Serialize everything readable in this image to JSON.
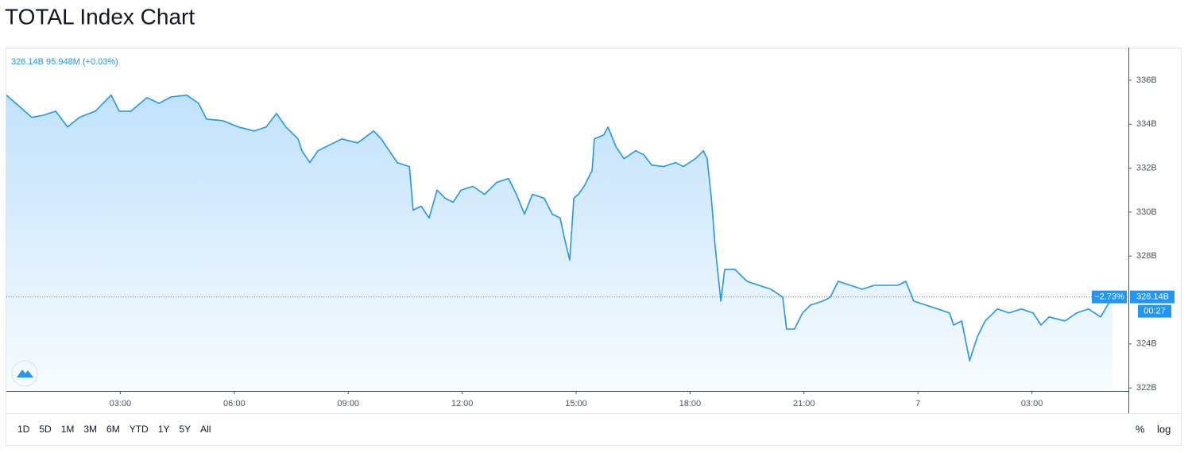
{
  "chart_data": {
    "type": "line",
    "title": "TOTAL Index Chart",
    "legend_text": "326.14B 95.948M (+0.03%)",
    "series": [
      {
        "name": "TOTAL",
        "color": "#2196f3",
        "x": [
          0,
          0.25,
          0.67,
          0.98,
          1.3,
          1.61,
          1.92,
          2.34,
          2.76,
          2.97,
          3.28,
          3.7,
          4.02,
          4.33,
          4.75,
          5.06,
          5.27,
          5.69,
          6.11,
          6.53,
          6.84,
          7.11,
          7.36,
          7.68,
          7.78,
          7.99,
          8.2,
          8.62,
          8.83,
          9.25,
          9.67,
          9.87,
          10.08,
          10.29,
          10.61,
          10.71,
          10.92,
          11.13,
          11.34,
          11.55,
          11.76,
          11.97,
          12.28,
          12.59,
          12.91,
          13.22,
          13.43,
          13.64,
          13.85,
          14.16,
          14.37,
          14.58,
          14.69,
          14.83,
          14.94,
          15.06,
          15.21,
          15.42,
          15.48,
          15.73,
          15.84,
          16.05,
          16.26,
          16.57,
          16.78,
          16.99,
          17.3,
          17.62,
          17.82,
          18.14,
          18.35,
          18.45,
          18.56,
          18.66,
          18.81,
          18.91,
          19.18,
          19.5,
          19.81,
          20.13,
          20.44,
          20.54,
          20.75,
          20.96,
          21.17,
          21.49,
          21.69,
          21.9,
          22.22,
          22.53,
          22.85,
          23.16,
          23.47,
          23.68,
          23.89,
          24.21,
          24.52,
          24.83,
          24.94,
          25.15,
          25.36,
          25.56,
          25.77,
          26.09,
          26.4,
          26.72,
          27.03,
          27.24,
          27.45,
          27.87,
          28.18,
          28.49,
          28.81,
          29.12
        ],
        "values": [
          335.32,
          334.95,
          334.31,
          334.41,
          334.59,
          333.87,
          334.31,
          334.59,
          335.32,
          334.59,
          334.59,
          335.21,
          334.95,
          335.24,
          335.32,
          334.95,
          334.23,
          334.16,
          333.87,
          333.69,
          333.87,
          334.49,
          333.87,
          333.33,
          332.79,
          332.25,
          332.79,
          333.15,
          333.33,
          333.15,
          333.69,
          333.33,
          332.79,
          332.25,
          332.07,
          330.09,
          330.27,
          329.73,
          331.0,
          330.63,
          330.45,
          331.0,
          331.17,
          330.81,
          331.35,
          331.53,
          330.81,
          329.91,
          330.81,
          330.63,
          329.91,
          329.73,
          328.83,
          327.82,
          330.63,
          330.81,
          331.17,
          331.89,
          333.33,
          333.51,
          333.87,
          332.97,
          332.43,
          332.79,
          332.61,
          332.14,
          332.07,
          332.25,
          332.07,
          332.43,
          332.79,
          332.43,
          330.63,
          328.47,
          325.95,
          327.39,
          327.39,
          326.85,
          326.67,
          326.49,
          326.13,
          324.68,
          324.68,
          325.41,
          325.77,
          325.95,
          326.13,
          326.85,
          326.67,
          326.49,
          326.67,
          326.67,
          326.67,
          326.85,
          325.95,
          325.77,
          325.59,
          325.41,
          324.86,
          325.05,
          323.24,
          324.32,
          325.05,
          325.59,
          325.41,
          325.59,
          325.41,
          324.86,
          325.23,
          325.05,
          325.41,
          325.59,
          325.23,
          326.14
        ]
      }
    ],
    "xlim": [
      0,
      29.54
    ],
    "xticks": [
      {
        "value": 3,
        "label": "03:00"
      },
      {
        "value": 6,
        "label": "06:00"
      },
      {
        "value": 9,
        "label": "09:00"
      },
      {
        "value": 12,
        "label": "12:00"
      },
      {
        "value": 15,
        "label": "15:00"
      },
      {
        "value": 18,
        "label": "18:00"
      },
      {
        "value": 21,
        "label": "21:00"
      },
      {
        "value": 24,
        "label": "7"
      },
      {
        "value": 27,
        "label": "03:00"
      }
    ],
    "ylim": [
      321.86,
      337.48
    ],
    "yticks": [
      {
        "value": 336,
        "label": "336B"
      },
      {
        "value": 334,
        "label": "334B"
      },
      {
        "value": 332,
        "label": "332B"
      },
      {
        "value": 330,
        "label": "330B"
      },
      {
        "value": 328,
        "label": "328B"
      },
      {
        "value": 324,
        "label": "324B"
      },
      {
        "value": 322,
        "label": "322B"
      }
    ],
    "last_price": {
      "value": 326.14,
      "label": "326.14B",
      "change": "−2.73%",
      "countdown": "00:27"
    },
    "range_buttons": [
      "1D",
      "5D",
      "1M",
      "3M",
      "6M",
      "YTD",
      "1Y",
      "5Y",
      "All"
    ],
    "scale_buttons": [
      "%",
      "log"
    ]
  }
}
